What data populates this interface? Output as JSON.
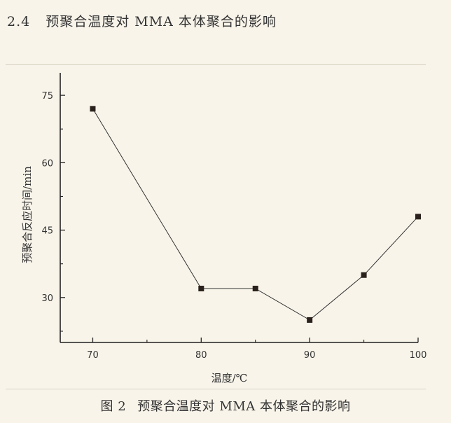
{
  "heading": {
    "number": "2.4",
    "text": "预聚合温度对 MMA 本体聚合的影响"
  },
  "caption": {
    "figure": "图 2",
    "text": "预聚合温度对 MMA 本体聚合的影响"
  },
  "chart_data": {
    "type": "line",
    "xlabel": "温度/℃",
    "ylabel": "预聚合反应时间/min",
    "x_ticks": [
      70,
      80,
      90,
      100
    ],
    "y_ticks": [
      30,
      45,
      60,
      75
    ],
    "xlim": [
      67,
      100
    ],
    "ylim": [
      20,
      80
    ],
    "series": [
      {
        "x": [
          70,
          80,
          85,
          90,
          95,
          100
        ],
        "values": [
          72,
          32,
          32,
          25,
          35,
          48
        ]
      }
    ],
    "marker": "square",
    "grid": false,
    "colors": {
      "line": "#333333",
      "marker": "#2a211c",
      "axis": "#222222"
    }
  }
}
